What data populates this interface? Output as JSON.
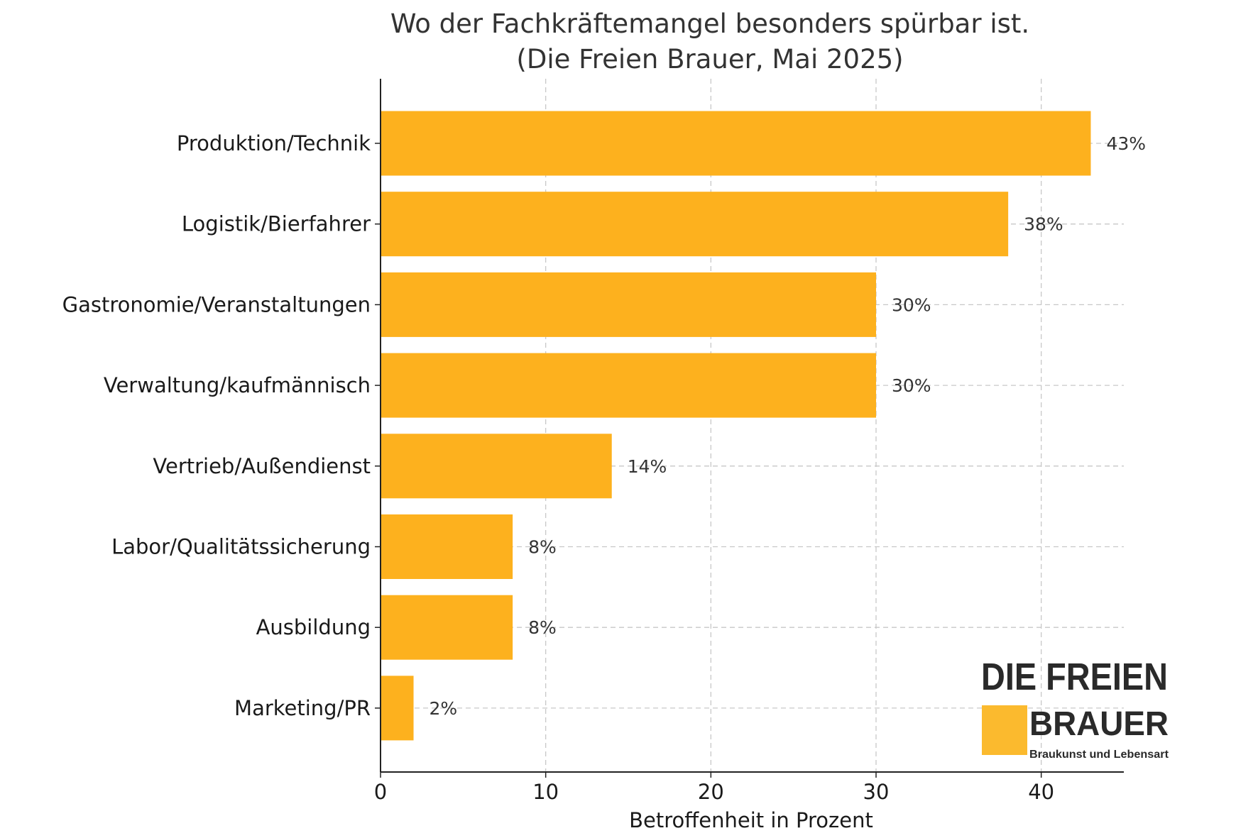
{
  "chart_data": {
    "type": "bar",
    "orientation": "horizontal",
    "title": "Wo der Fachkräftemangel besonders spürbar ist.",
    "subtitle": "(Die Freien Brauer, Mai 2025)",
    "categories": [
      "Produktion/Technik",
      "Logistik/Bierfahrer",
      "Gastronomie/Veranstaltungen",
      "Verwaltung/kaufmännisch",
      "Vertrieb/Außendienst",
      "Labor/Qualitätssicherung",
      "Ausbildung",
      "Marketing/PR"
    ],
    "values": [
      43,
      38,
      30,
      30,
      14,
      8,
      8,
      2
    ],
    "value_labels": [
      "43%",
      "38%",
      "30%",
      "30%",
      "14%",
      "8%",
      "8%",
      "2%"
    ],
    "xlabel": "Betroffenheit in Prozent",
    "ylabel": "",
    "xlim": [
      0,
      45
    ],
    "xticks": [
      "0",
      "10",
      "20",
      "30",
      "40"
    ],
    "grid": true,
    "bar_color": "#FDB11E"
  },
  "logo": {
    "line1": "DIE FREIEN",
    "line2": "BRAUER",
    "tagline": "Braukunst und Lebensart",
    "accent": "#FBBA2E"
  }
}
